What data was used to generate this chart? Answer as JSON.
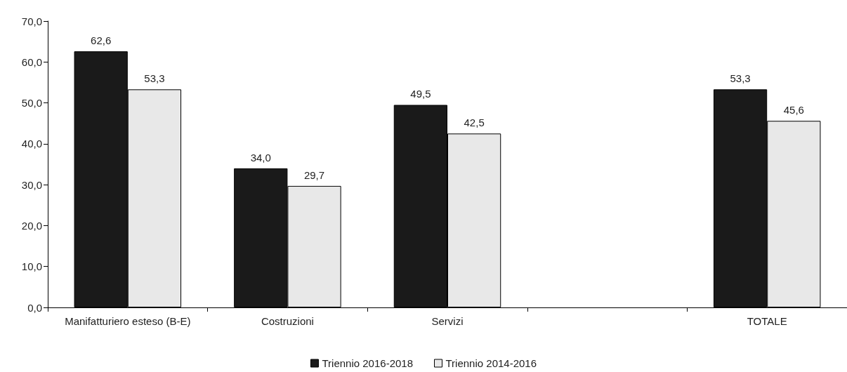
{
  "chart_data": {
    "type": "bar",
    "categories": [
      "Manifatturiero esteso (B-E)",
      "Costruzioni",
      "Servizi",
      null,
      "TOTALE"
    ],
    "series": [
      {
        "name": "Triennio 2016-2018",
        "color": "#1a1a1a",
        "values": [
          62.6,
          34.0,
          49.5,
          null,
          53.3
        ],
        "value_labels": [
          "62,6",
          "34,0",
          "49,5",
          null,
          "53,3"
        ]
      },
      {
        "name": "Triennio 2014-2016",
        "color": "#e8e8e8",
        "values": [
          53.3,
          29.7,
          42.5,
          null,
          45.6
        ],
        "value_labels": [
          "53,3",
          "29,7",
          "42,5",
          null,
          "45,6"
        ]
      }
    ],
    "ylim": [
      0,
      70
    ],
    "yticks": [
      {
        "value": 0,
        "label": "0,0"
      },
      {
        "value": 10,
        "label": "10,0"
      },
      {
        "value": 20,
        "label": "20,0"
      },
      {
        "value": 30,
        "label": "30,0"
      },
      {
        "value": 40,
        "label": "40,0"
      },
      {
        "value": 50,
        "label": "50,0"
      },
      {
        "value": 60,
        "label": "60,0"
      },
      {
        "value": 70,
        "label": "70,0"
      }
    ],
    "grid": false,
    "legend": "bottom"
  }
}
